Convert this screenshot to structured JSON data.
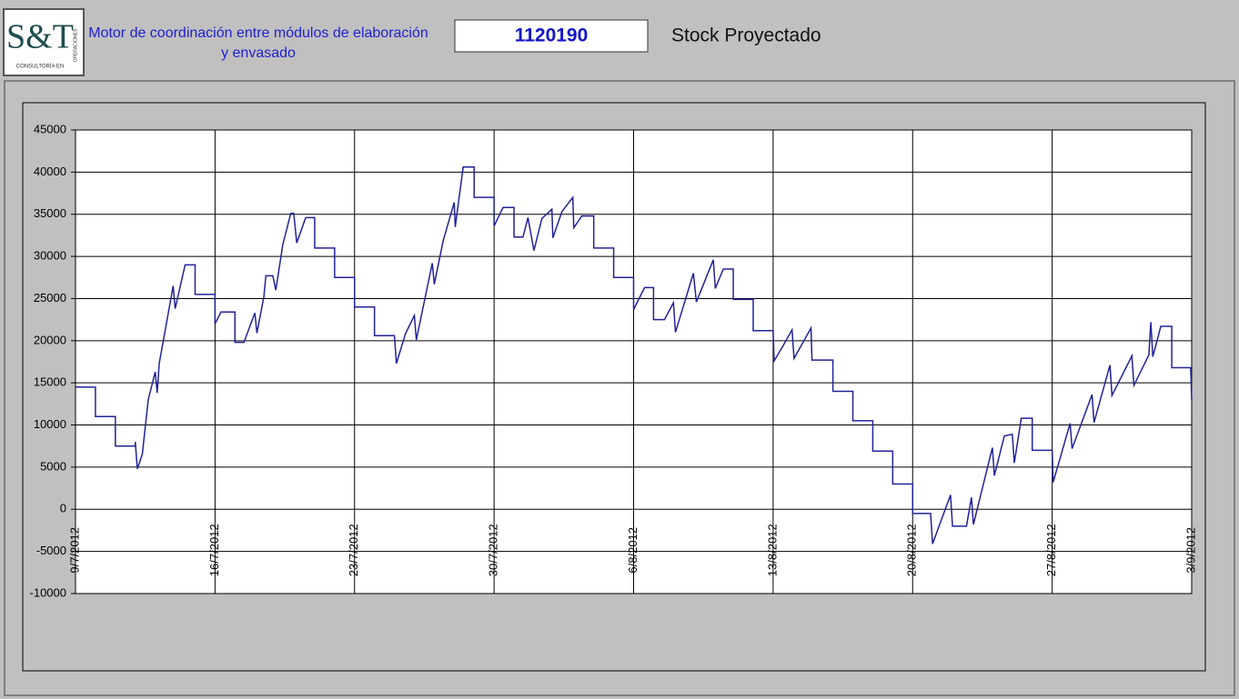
{
  "header": {
    "logo": "S&T",
    "logo_sub": "CONSULTORÍA EN",
    "logo_side": "OPERACIONES",
    "title": [
      "Motor de coordinación entre módulos de elaboración",
      "y envasado"
    ],
    "code": "1120190",
    "subtitle": "Stock Proyectado"
  },
  "chart_data": {
    "type": "line",
    "x": [
      0,
      1,
      1,
      2,
      2,
      3,
      3,
      3.1,
      3.35,
      3.65,
      4,
      4.1,
      4.2,
      4.9,
      5,
      5.5,
      6,
      6,
      7,
      7,
      7.3,
      8,
      8,
      8.45,
      9,
      9.1,
      9.45,
      9.55,
      9.9,
      10.05,
      10.4,
      10.8,
      10.95,
      11.1,
      11.55,
      12,
      12,
      13,
      13,
      14,
      14,
      15,
      15,
      16,
      16.1,
      16.55,
      17,
      17.1,
      17.9,
      18,
      18.45,
      19,
      19.05,
      19.45,
      20,
      20,
      21,
      21,
      21.45,
      22,
      22,
      22.45,
      22.7,
      23,
      23.4,
      23.9,
      23.95,
      24.4,
      24.95,
      25,
      25.4,
      26,
      26,
      27,
      27,
      28,
      28,
      28.55,
      29,
      29,
      29.55,
      30,
      30.1,
      31,
      31.15,
      32,
      32.1,
      32.5,
      33,
      33,
      34,
      34,
      35,
      35.05,
      35.5,
      35.95,
      36.05,
      36.9,
      36.95,
      38,
      38,
      39,
      39,
      40,
      40,
      41,
      41,
      42,
      42,
      42.9,
      43,
      43.9,
      44,
      44.7,
      44.95,
      45.05,
      46,
      46.1,
      46.6,
      47,
      47.1,
      47.45,
      48,
      48,
      49,
      49.05,
      49.9,
      50,
      51,
      51.1,
      51.9,
      52,
      53,
      53.1,
      53.85,
      53.95,
      54.05,
      54.45,
      55,
      55,
      55.95,
      56
    ],
    "series": [
      {
        "name": "Stock Proyectado",
        "color": "#22229a",
        "values": [
          14500,
          14500,
          11000,
          11000,
          7500,
          7500,
          8000,
          4800,
          6500,
          13000,
          16300,
          13800,
          17300,
          26500,
          23800,
          29000,
          29000,
          25500,
          25500,
          22000,
          23400,
          23400,
          19800,
          19800,
          23300,
          20900,
          25200,
          27700,
          27700,
          26000,
          31400,
          35100,
          35100,
          31600,
          34600,
          34600,
          31000,
          31000,
          27500,
          27500,
          24000,
          24000,
          20600,
          20600,
          17300,
          20800,
          23000,
          20100,
          29200,
          26700,
          31900,
          36400,
          33500,
          40600,
          40600,
          37000,
          37000,
          33600,
          35800,
          35800,
          32300,
          32300,
          34600,
          30700,
          34500,
          35600,
          32200,
          35300,
          37000,
          33400,
          34800,
          34800,
          31000,
          31000,
          27500,
          27500,
          23700,
          26300,
          26300,
          22500,
          22500,
          24500,
          21000,
          28000,
          24600,
          29600,
          26200,
          28500,
          28500,
          24900,
          24900,
          21200,
          21200,
          17600,
          19400,
          21300,
          17900,
          21500,
          17700,
          17700,
          14000,
          14000,
          10500,
          10500,
          6900,
          6900,
          3000,
          3000,
          -500,
          -500,
          -4100,
          1700,
          -2000,
          -2000,
          1400,
          -1800,
          7300,
          4000,
          8700,
          8900,
          5500,
          10800,
          10800,
          7000,
          7000,
          3200,
          10200,
          7200,
          13600,
          10300,
          17100,
          13500,
          18200,
          14700,
          18300,
          22200,
          18100,
          21700,
          21700,
          16800,
          16800,
          13000
        ]
      }
    ],
    "xlim": [
      0,
      56
    ],
    "xticks": [
      {
        "value": 0,
        "label": "9/7/2012"
      },
      {
        "value": 7,
        "label": "16/7/2012"
      },
      {
        "value": 14,
        "label": "23/7/2012"
      },
      {
        "value": 21,
        "label": "30/7/2012"
      },
      {
        "value": 28,
        "label": "6/8/2012"
      },
      {
        "value": 35,
        "label": "13/8/2012"
      },
      {
        "value": 42,
        "label": "20/8/2012"
      },
      {
        "value": 49,
        "label": "27/8/2012"
      },
      {
        "value": 56,
        "label": "3/9/2012"
      }
    ],
    "ylim": [
      -10000,
      45000
    ],
    "yticks": [
      -10000,
      -5000,
      0,
      5000,
      10000,
      15000,
      20000,
      25000,
      30000,
      35000,
      40000,
      45000
    ],
    "grid": true
  }
}
